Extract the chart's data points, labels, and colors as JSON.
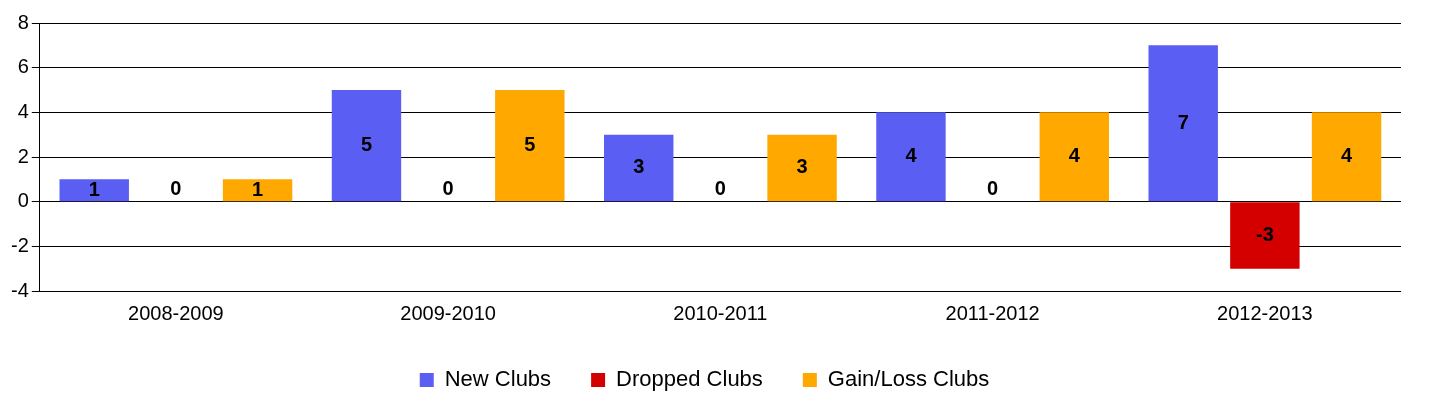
{
  "chart_data": {
    "type": "bar",
    "categories": [
      "2008-2009",
      "2009-2010",
      "2010-2011",
      "2011-2012",
      "2012-2013"
    ],
    "series": [
      {
        "name": "New Clubs",
        "color": "#5b5ef2",
        "values": [
          1,
          5,
          3,
          4,
          7
        ]
      },
      {
        "name": "Dropped Clubs",
        "color": "#d40000",
        "values": [
          0,
          0,
          0,
          0,
          -3
        ]
      },
      {
        "name": "Gain/Loss Clubs",
        "color": "#ffa800",
        "values": [
          1,
          5,
          3,
          4,
          4
        ]
      }
    ],
    "ylim": [
      -4,
      8
    ],
    "yticks": [
      -4,
      -2,
      0,
      2,
      4,
      6,
      8
    ],
    "grid": "y",
    "legend": "bottom",
    "data_labels": true
  }
}
